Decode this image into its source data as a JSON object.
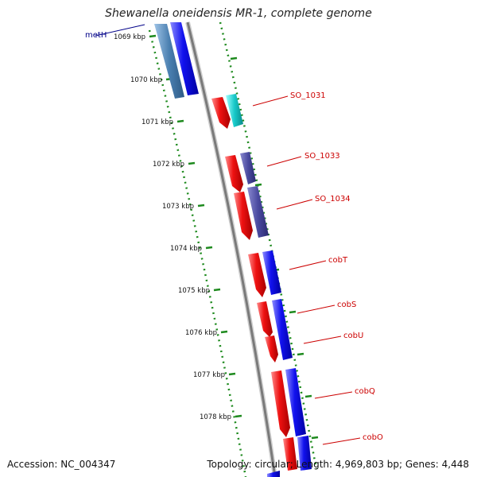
{
  "title": "Shewanella oneidensis MR-1, complete genome",
  "footer": {
    "accession": "Accession: NC_004347",
    "stats": "Topology: circular; Length: 4,969,803 bp; Genes: 4,448"
  },
  "kbp_ticks": [
    "1069 kbp",
    "1070 kbp",
    "1071 kbp",
    "1072 kbp",
    "1073 kbp",
    "1074 kbp",
    "1075 kbp",
    "1076 kbp",
    "1077 kbp",
    "1078 kbp"
  ],
  "gene_labels": {
    "left": [
      "metH"
    ],
    "right": [
      "SO_1031",
      "SO_1033",
      "SO_1034",
      "cobT",
      "cobS",
      "cobU",
      "cobQ",
      "cobO"
    ]
  },
  "colors": {
    "forward_red": "#ee1111",
    "reverse_blue": "#1111ee",
    "teal": "#17c9c9",
    "steel_blue": "#4a7fb0",
    "slate": "#4a4aa0",
    "backbone": "#8a8a8a",
    "tick_green": "#1e8a1e",
    "label_red": "#cc0000",
    "label_navy": "#000088"
  }
}
